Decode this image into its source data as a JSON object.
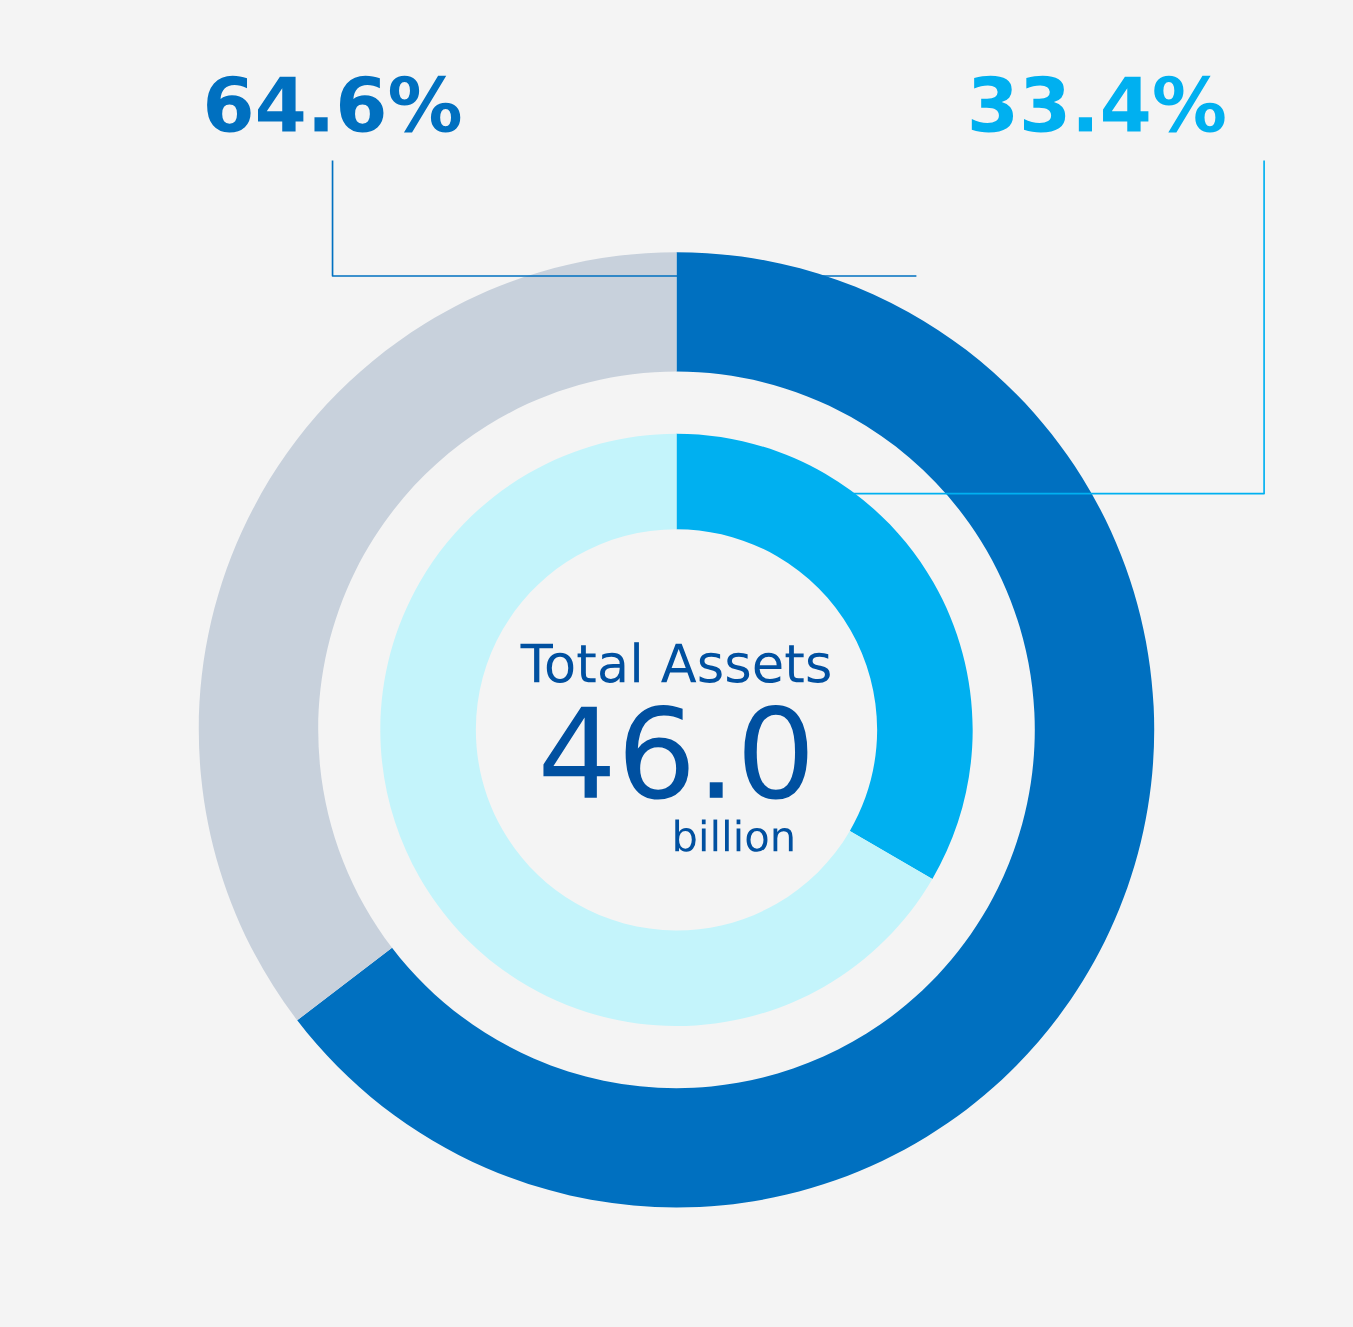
{
  "chart_data": {
    "type": "donut",
    "categories": [
      null,
      null
    ],
    "series": [
      {
        "values": [
          64.6,
          35.4
        ],
        "colors": [
          "#0070c0",
          "#c8d1dc"
        ],
        "value_labels": [
          "64.6%",
          null
        ]
      },
      {
        "values": [
          33.4,
          66.6
        ],
        "colors": [
          "#00b0f0",
          "#c4f4fb"
        ],
        "value_labels": [
          "33.4%",
          null
        ]
      }
    ],
    "annotations": [
      "Total Assets",
      "46.0",
      "billion"
    ]
  }
}
